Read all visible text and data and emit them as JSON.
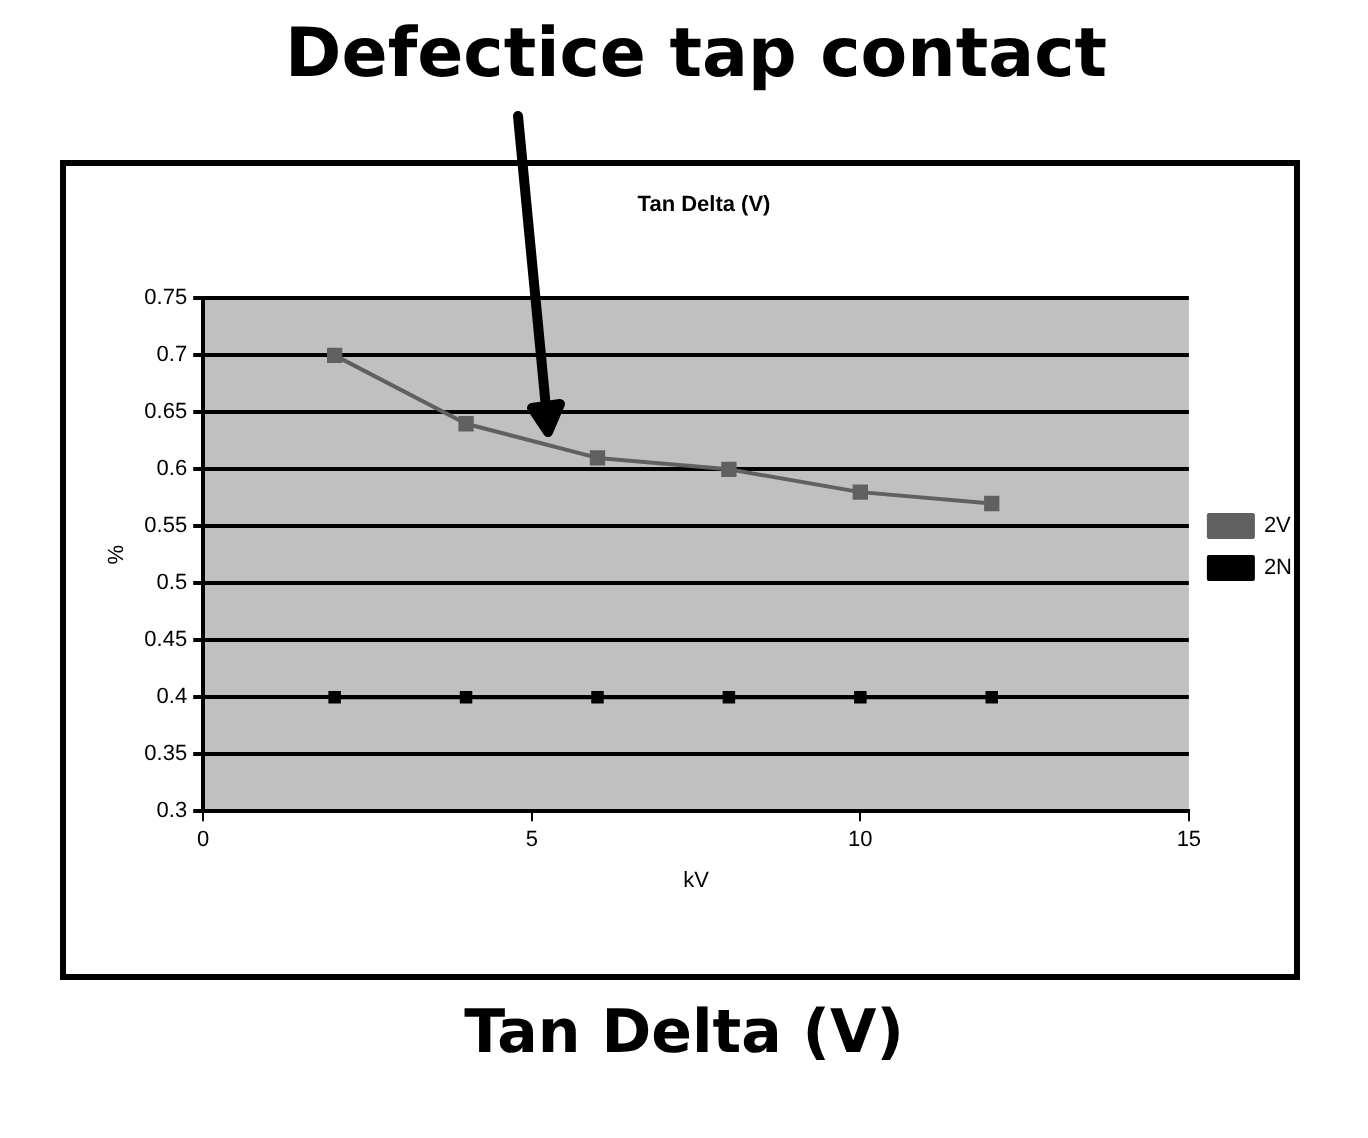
{
  "chart_data": {
    "type": "line",
    "title": "Tan Delta (V)",
    "xlabel": "kV",
    "ylabel": "%",
    "x": [
      2,
      4,
      6,
      8,
      10,
      12
    ],
    "series": [
      {
        "name": "2V",
        "color": "#606060",
        "values": [
          0.7,
          0.64,
          0.61,
          0.6,
          0.58,
          0.57
        ]
      },
      {
        "name": "2N",
        "color": "#000000",
        "values": [
          0.4,
          0.4,
          0.4,
          0.4,
          0.4,
          0.4
        ]
      }
    ],
    "xlim": [
      0,
      15
    ],
    "xticks": [
      0,
      5,
      10,
      15
    ],
    "ylim": [
      0.3,
      0.75
    ],
    "yticks": [
      0.3,
      0.35,
      0.4,
      0.45,
      0.5,
      0.55,
      0.6,
      0.65,
      0.7,
      0.75
    ],
    "grid": "y",
    "legend": "right",
    "marker": "square",
    "line_style": "solid",
    "annotations": [
      "Defectice tap contact",
      "Tan Delta (V)"
    ]
  }
}
